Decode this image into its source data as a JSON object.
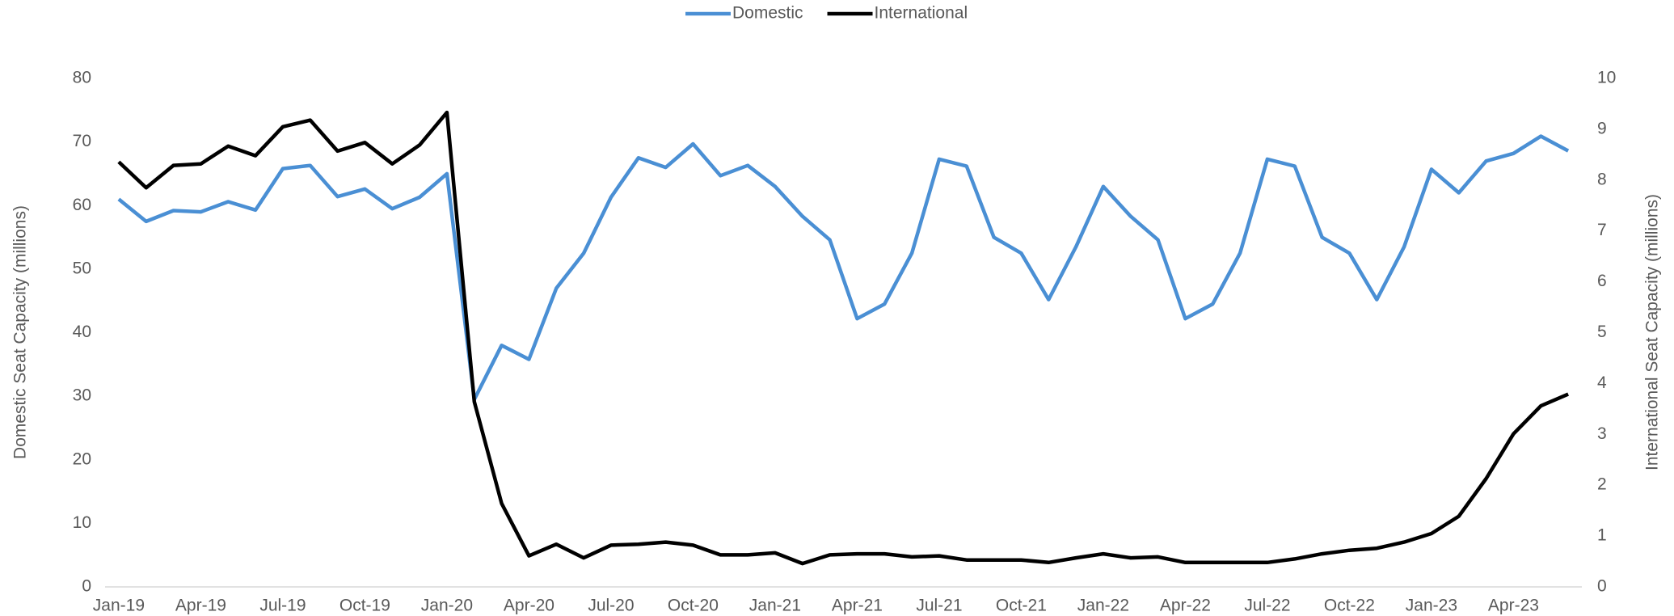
{
  "chart_data": {
    "type": "line",
    "categories": [
      "Jan-19",
      null,
      null,
      "Apr-19",
      null,
      null,
      "Jul-19",
      null,
      null,
      "Oct-19",
      null,
      null,
      "Jan-20",
      null,
      null,
      "Apr-20",
      null,
      null,
      "Jul-20",
      null,
      null,
      "Oct-20",
      null,
      null,
      "Jan-21",
      null,
      null,
      "Apr-21",
      null,
      null,
      "Jul-21",
      null,
      null,
      "Oct-21",
      null,
      null,
      "Jan-22",
      null,
      null,
      "Apr-22",
      null,
      null,
      "Jul-22",
      null,
      null,
      "Oct-22",
      null,
      null,
      "Jan-23",
      null,
      null,
      "Apr-23",
      null,
      null
    ],
    "series": [
      {
        "name": "Domestic",
        "color": "#4a8fd4",
        "axis": "y",
        "values": [
          61,
          57.5,
          59.2,
          59,
          60.6,
          59.3,
          65.8,
          66.3,
          61.4,
          62.6,
          59.5,
          61.3,
          65,
          29.5,
          38,
          35.8,
          47,
          52.5,
          61.3,
          67.5,
          66,
          69.7,
          64.7,
          66.3,
          63,
          58.3,
          54.6,
          42.2,
          44.5,
          52.5,
          67.3,
          66.2,
          55,
          52.5,
          45.2,
          53.5,
          63,
          58.3,
          54.6,
          42.2,
          44.5,
          52.5,
          67.3,
          66.2,
          55,
          52.5,
          45.2,
          53.5,
          65.7,
          62,
          67,
          68.2,
          70.9,
          68.6
        ]
      },
      {
        "name": "International",
        "color": "#000000",
        "axis": "y2",
        "values": [
          8.36,
          7.85,
          8.29,
          8.32,
          8.67,
          8.48,
          9.05,
          9.18,
          8.57,
          8.74,
          8.32,
          8.69,
          9.33,
          3.64,
          1.64,
          0.61,
          0.84,
          0.57,
          0.82,
          0.84,
          0.88,
          0.82,
          0.63,
          0.63,
          0.67,
          0.46,
          0.63,
          0.65,
          0.65,
          0.59,
          0.61,
          0.53,
          0.53,
          0.53,
          0.48,
          0.57,
          0.65,
          0.57,
          0.59,
          0.48,
          0.48,
          0.48,
          0.48,
          0.55,
          0.65,
          0.72,
          0.76,
          0.88,
          1.05,
          1.39,
          2.13,
          3.01,
          3.56,
          3.79
        ]
      }
    ],
    "ylabel": "Domestic Seat Capacity (millions)",
    "y2label": "International Seat Capacity (millions)",
    "ylim": [
      0,
      80
    ],
    "yticks": [
      0,
      10,
      20,
      30,
      40,
      50,
      60,
      70,
      80
    ],
    "y2lim": [
      0,
      10
    ],
    "y2ticks": [
      0,
      1,
      2,
      3,
      4,
      5,
      6,
      7,
      8,
      9,
      10
    ],
    "grid": false,
    "legend": "top"
  }
}
